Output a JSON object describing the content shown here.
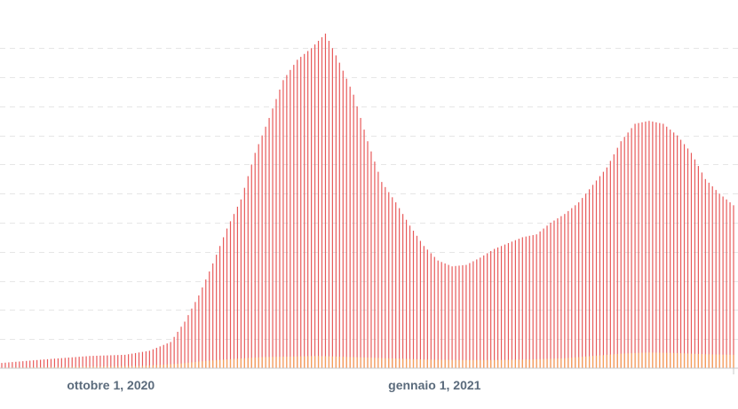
{
  "chart_data": {
    "type": "bar",
    "title": "",
    "xlabel": "",
    "ylabel": "",
    "grid": true,
    "y_ticks_shown": false,
    "x_tick_labels": [
      {
        "label": "ottobre 1, 2020",
        "day_index": 31
      },
      {
        "label": "gennaio 1, 2021",
        "day_index": 123
      }
    ],
    "x_start_date": "2020-09-01",
    "ylim": [
      0,
      1180
    ],
    "grid_y_values": [
      100,
      200,
      300,
      400,
      500,
      600,
      700,
      800,
      900,
      1000,
      1100
    ],
    "series": [
      {
        "color": "#e85a5a",
        "knots": [
          [
            0,
            18
          ],
          [
            12,
            30
          ],
          [
            25,
            42
          ],
          [
            35,
            46
          ],
          [
            42,
            60
          ],
          [
            48,
            90
          ],
          [
            52,
            160
          ],
          [
            56,
            250
          ],
          [
            60,
            360
          ],
          [
            64,
            480
          ],
          [
            68,
            580
          ],
          [
            72,
            740
          ],
          [
            76,
            860
          ],
          [
            80,
            990
          ],
          [
            84,
            1060
          ],
          [
            88,
            1100
          ],
          [
            92,
            1150
          ],
          [
            96,
            1050
          ],
          [
            100,
            940
          ],
          [
            104,
            780
          ],
          [
            108,
            640
          ],
          [
            112,
            570
          ],
          [
            116,
            490
          ],
          [
            120,
            420
          ],
          [
            124,
            370
          ],
          [
            128,
            350
          ],
          [
            132,
            355
          ],
          [
            136,
            380
          ],
          [
            140,
            410
          ],
          [
            144,
            430
          ],
          [
            148,
            450
          ],
          [
            152,
            460
          ],
          [
            156,
            500
          ],
          [
            160,
            530
          ],
          [
            164,
            570
          ],
          [
            168,
            630
          ],
          [
            172,
            690
          ],
          [
            176,
            780
          ],
          [
            180,
            840
          ],
          [
            184,
            850
          ],
          [
            188,
            840
          ],
          [
            192,
            800
          ],
          [
            196,
            740
          ],
          [
            200,
            650
          ],
          [
            204,
            600
          ],
          [
            208,
            560
          ]
        ]
      },
      {
        "color": "#f5a05a",
        "knots": [
          [
            0,
            2
          ],
          [
            40,
            8
          ],
          [
            50,
            15
          ],
          [
            58,
            25
          ],
          [
            66,
            32
          ],
          [
            74,
            38
          ],
          [
            82,
            40
          ],
          [
            90,
            42
          ],
          [
            100,
            38
          ],
          [
            110,
            34
          ],
          [
            120,
            30
          ],
          [
            130,
            28
          ],
          [
            140,
            28
          ],
          [
            150,
            30
          ],
          [
            160,
            34
          ],
          [
            168,
            42
          ],
          [
            176,
            50
          ],
          [
            184,
            54
          ],
          [
            192,
            52
          ],
          [
            200,
            48
          ],
          [
            208,
            46
          ]
        ]
      }
    ]
  }
}
